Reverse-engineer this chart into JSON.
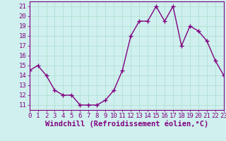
{
  "x": [
    0,
    1,
    2,
    3,
    4,
    5,
    6,
    7,
    8,
    9,
    10,
    11,
    12,
    13,
    14,
    15,
    16,
    17,
    18,
    19,
    20,
    21,
    22,
    23
  ],
  "y": [
    14.5,
    15.0,
    14.0,
    12.5,
    12.0,
    12.0,
    11.0,
    11.0,
    11.0,
    11.5,
    12.5,
    14.5,
    18.0,
    19.5,
    19.5,
    21.0,
    19.5,
    21.0,
    17.0,
    19.0,
    18.5,
    17.5,
    15.5,
    14.0
  ],
  "line_color": "#800080",
  "marker": "+",
  "marker_size": 4,
  "marker_edge_width": 1.0,
  "line_width": 1.0,
  "bg_color": "#cff0ee",
  "grid_color": "#aaddcc",
  "xlabel": "Windchill (Refroidissement éolien,°C)",
  "xlabel_fontsize": 7.5,
  "tick_fontsize": 6.5,
  "xlim": [
    0,
    23
  ],
  "ylim": [
    10.5,
    21.5
  ],
  "yticks": [
    11,
    12,
    13,
    14,
    15,
    16,
    17,
    18,
    19,
    20,
    21
  ],
  "xticks": [
    0,
    1,
    2,
    3,
    4,
    5,
    6,
    7,
    8,
    9,
    10,
    11,
    12,
    13,
    14,
    15,
    16,
    17,
    18,
    19,
    20,
    21,
    22,
    23
  ],
  "spine_color": "#800080",
  "label_color": "#800080"
}
